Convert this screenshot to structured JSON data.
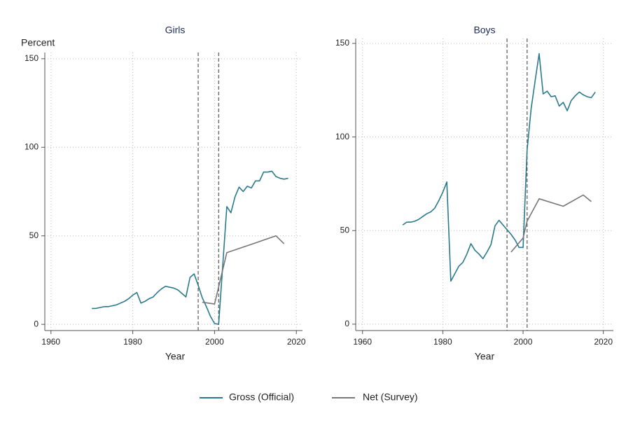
{
  "chart_data": [
    {
      "type": "line",
      "title": "Girls",
      "y_label": "Percent",
      "x_label": "Year",
      "xlim": [
        1958.5,
        2021.5
      ],
      "xticks": [
        1960,
        1980,
        2000,
        2020
      ],
      "ylim": [
        -3.5,
        153.5
      ],
      "yticks": [
        0,
        50,
        100,
        150
      ],
      "grid": true,
      "reference_lines": [
        1996,
        2001
      ],
      "series": [
        {
          "name": "Gross (Official)",
          "color": "#2a7a8c",
          "x": [
            1970,
            1971,
            1972,
            1973,
            1974,
            1975,
            1976,
            1977,
            1978,
            1979,
            1980,
            1981,
            1982,
            1983,
            1984,
            1985,
            1986,
            1987,
            1988,
            1989,
            1990,
            1991,
            1992,
            1993,
            1994,
            1995,
            1996,
            1997,
            1998,
            1999,
            2000,
            2001,
            2003,
            2004,
            2005,
            2006,
            2007,
            2008,
            2009,
            2010,
            2011,
            2012,
            2013,
            2014,
            2015,
            2016,
            2017,
            2018
          ],
          "values": [
            9,
            9,
            9.5,
            10,
            10,
            10.5,
            11,
            12,
            13,
            14.5,
            16.5,
            18,
            12,
            13,
            14.5,
            15.5,
            18,
            20,
            21.5,
            21,
            20.5,
            19.5,
            17.5,
            15.5,
            26.5,
            28.5,
            22,
            15,
            10,
            4.5,
            0.5,
            0,
            66.5,
            63,
            72,
            77.5,
            75,
            78,
            77,
            81,
            81,
            86,
            86,
            86.5,
            83.5,
            82.5,
            82,
            82.5
          ]
        },
        {
          "name": "Net (Survey)",
          "color": "#777777",
          "x": [
            1997,
            2000,
            2003,
            2010,
            2015,
            2017
          ],
          "values": [
            12.5,
            11.5,
            40.5,
            46,
            50,
            45.5
          ]
        }
      ]
    },
    {
      "type": "line",
      "title": "Boys",
      "x_label": "Year",
      "xlim": [
        1958.3,
        2022.5
      ],
      "xticks": [
        1960,
        1980,
        2000,
        2020
      ],
      "ylim": [
        -3.4,
        152.6
      ],
      "yticks": [
        0,
        50,
        100,
        150
      ],
      "grid": true,
      "reference_lines": [
        1996,
        2001
      ],
      "series": [
        {
          "name": "Gross (Official)",
          "color": "#2a7a8c",
          "x": [
            1970,
            1971,
            1972,
            1973,
            1974,
            1975,
            1976,
            1977,
            1978,
            1979,
            1980,
            1981,
            1982,
            1983,
            1984,
            1985,
            1986,
            1987,
            1988,
            1989,
            1990,
            1991,
            1992,
            1993,
            1994,
            1995,
            1996,
            1997,
            1998,
            1999,
            2000,
            2001,
            2002,
            2003,
            2004,
            2005,
            2006,
            2007,
            2008,
            2009,
            2010,
            2011,
            2012,
            2013,
            2014,
            2015,
            2016,
            2017,
            2018
          ],
          "values": [
            53,
            54.5,
            54.5,
            55,
            56,
            57.5,
            59,
            60,
            62,
            66,
            70.5,
            76,
            23,
            27,
            31,
            33,
            37.5,
            43,
            39.5,
            37.5,
            35,
            38.5,
            42.5,
            52.5,
            55.5,
            53,
            50.5,
            48,
            45,
            41,
            41,
            93,
            115,
            130,
            144.5,
            123,
            124.5,
            121.5,
            122,
            116.5,
            118.5,
            114,
            119.5,
            122,
            124,
            122.5,
            121.5,
            121,
            124
          ]
        },
        {
          "name": "Net (Survey)",
          "color": "#777777",
          "x": [
            1997,
            2000,
            2001,
            2004,
            2010,
            2015,
            2017
          ],
          "values": [
            38.5,
            46,
            55,
            67,
            63,
            69,
            65.5
          ]
        }
      ]
    }
  ]
}
